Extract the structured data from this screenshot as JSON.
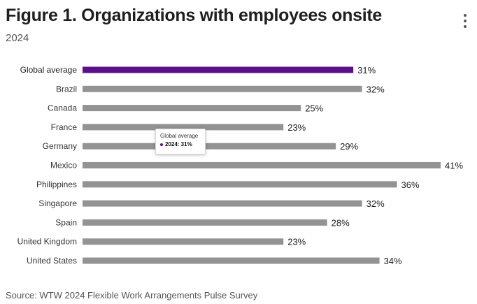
{
  "header": {
    "title": "Figure 1. Organizations with employees onsite",
    "subtitle": "2024",
    "menu_icon": "kebab-menu-icon"
  },
  "colors": {
    "highlight": "#5b0f8a",
    "bar": "#939393",
    "text": "#333333"
  },
  "tooltip": {
    "title": "Global average",
    "value_text": "2024: 31%"
  },
  "footer": {
    "source": "Source: WTW 2024 Flexible Work Arrangements Pulse Survey"
  },
  "chart_data": {
    "type": "bar",
    "orientation": "horizontal",
    "title": "Figure 1. Organizations with employees onsite",
    "subtitle": "2024",
    "categories": [
      "Global average",
      "Brazil",
      "Canada",
      "France",
      "Germany",
      "Mexico",
      "Philippines",
      "Singapore",
      "Spain",
      "United Kingdom",
      "United States"
    ],
    "values": [
      31,
      32,
      25,
      23,
      29,
      41,
      36,
      32,
      28,
      23,
      34
    ],
    "labels": [
      "31%",
      "32%",
      "25%",
      "23%",
      "29%",
      "41%",
      "36%",
      "32%",
      "28%",
      "23%",
      "34%"
    ],
    "highlight_index": 0,
    "unit": "%",
    "xlim": [
      0,
      41
    ],
    "grid": false,
    "legend": "none"
  }
}
